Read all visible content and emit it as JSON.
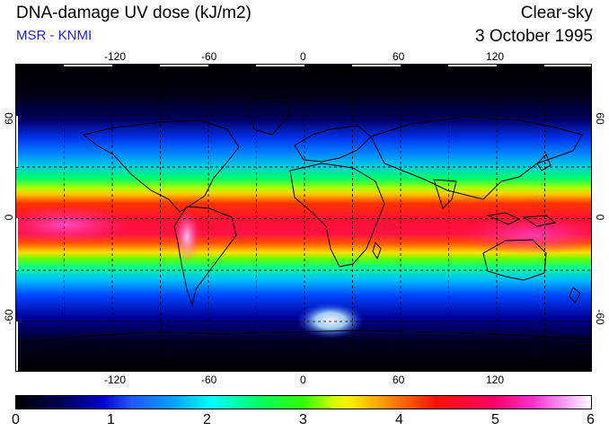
{
  "header": {
    "title": "DNA-damage UV dose (kJ/m2)",
    "subtitle": "MSR - KNMI",
    "sky_condition": "Clear-sky",
    "date": "3 October 1995"
  },
  "map": {
    "longitude_ticks": [
      "-120",
      "-60",
      "0",
      "60",
      "120"
    ],
    "latitude_ticks_left": [
      "60",
      "0",
      "-60"
    ],
    "latitude_ticks_right": [
      "60",
      "0",
      "-60"
    ],
    "longitude_range": [
      -180,
      180
    ],
    "latitude_range": [
      -90,
      90
    ],
    "gridlines": "dashed",
    "grid_interval_lon": 30,
    "grid_interval_lat": 30
  },
  "colorbar": {
    "labels": [
      "0",
      "1",
      "2",
      "3",
      "4",
      "5",
      "6"
    ],
    "min": 0,
    "max": 6,
    "colors": [
      "#000000",
      "#0000cc",
      "#00ffff",
      "#33ff00",
      "#ffee00",
      "#ff1100",
      "#ff33cc",
      "#ffffff"
    ]
  }
}
